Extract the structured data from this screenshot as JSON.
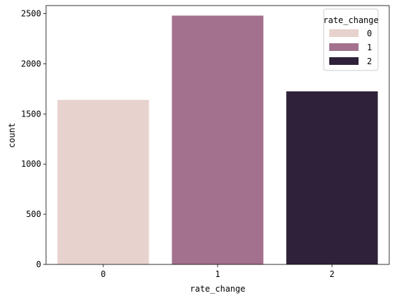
{
  "chart_data": {
    "type": "bar",
    "categories": [
      "0",
      "1",
      "2"
    ],
    "values": [
      1640,
      2480,
      1725
    ],
    "colors": [
      "#e8d2cd",
      "#a3718d",
      "#2e2139"
    ],
    "xlabel": "rate_change",
    "ylabel": "count",
    "ylim": [
      0,
      2580
    ],
    "yticks": [
      0,
      500,
      1000,
      1500,
      2000,
      2500
    ],
    "grid": false,
    "legend": {
      "title": "rate_change",
      "placement": "top-right",
      "entries": [
        "0",
        "1",
        "2"
      ]
    }
  }
}
